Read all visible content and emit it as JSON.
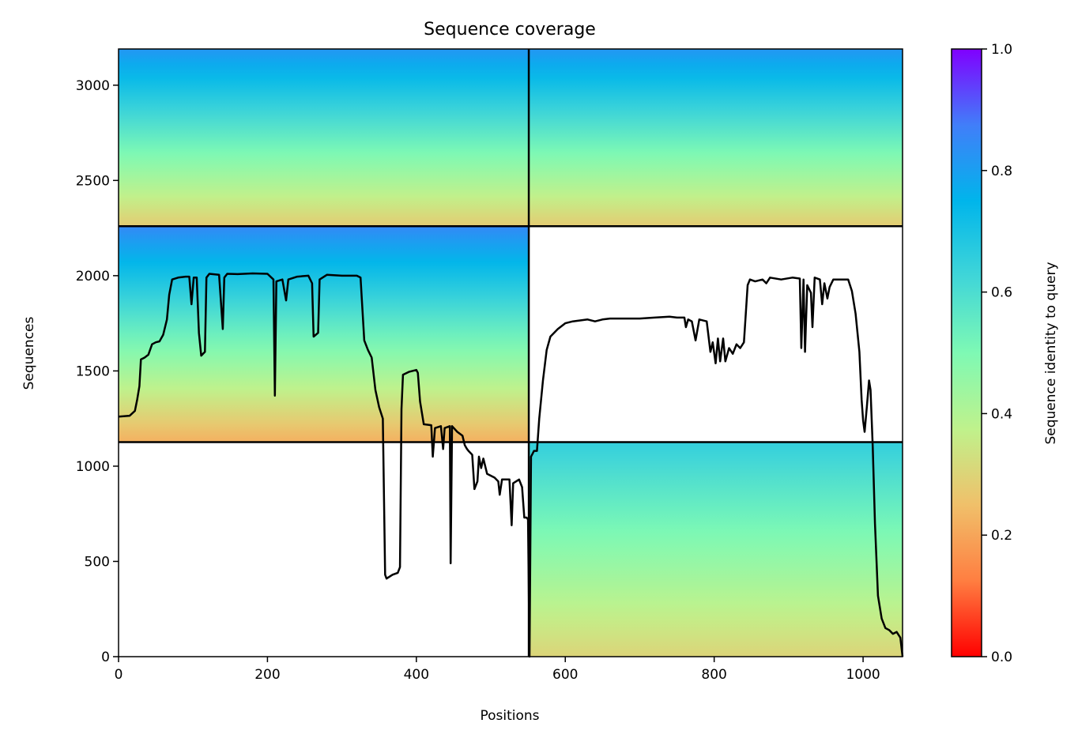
{
  "chart_data": {
    "type": "heatmap",
    "title": "Sequence coverage",
    "xlabel": "Positions",
    "ylabel": "Sequences",
    "xlim": [
      0,
      1053
    ],
    "ylim": [
      0,
      3190
    ],
    "x_ticks": [
      0,
      200,
      400,
      600,
      800,
      1000
    ],
    "y_ticks": [
      0,
      500,
      1000,
      1500,
      2000,
      2500,
      3000
    ],
    "colorbar": {
      "label": "Sequence identity to query",
      "range": [
        0.0,
        1.0
      ],
      "ticks": [
        "0.0",
        "0.2",
        "0.4",
        "0.6",
        "0.8",
        "1.0"
      ],
      "colormap": [
        "#ff0000",
        "#ff7e41",
        "#f0c06a",
        "#bff28c",
        "#7ef9b4",
        "#40d6d8",
        "#00b5eb",
        "#417ef9",
        "#8000ff"
      ]
    },
    "domain_boundaries": {
      "x": 551,
      "y": [
        1126,
        2260
      ]
    },
    "blocks": [
      {
        "x": [
          551,
          1053
        ],
        "y": [
          0,
          1126
        ],
        "identity_top": 0.65,
        "identity_bottom": 0.3
      },
      {
        "x": [
          0,
          551
        ],
        "y": [
          1126,
          2260
        ],
        "identity_top": 0.85,
        "identity_bottom": 0.22
      },
      {
        "x": [
          0,
          551
        ],
        "y": [
          2260,
          3190
        ],
        "identity_top": 0.82,
        "identity_bottom": 0.28
      },
      {
        "x": [
          551,
          1053
        ],
        "y": [
          2260,
          3190
        ],
        "identity_top": 0.82,
        "identity_bottom": 0.28
      }
    ],
    "series": [
      {
        "type": "line",
        "color": "#000000",
        "points": [
          [
            0,
            1260
          ],
          [
            15,
            1265
          ],
          [
            22,
            1290
          ],
          [
            25,
            1350
          ],
          [
            28,
            1420
          ],
          [
            30,
            1560
          ],
          [
            35,
            1570
          ],
          [
            40,
            1585
          ],
          [
            45,
            1640
          ],
          [
            50,
            1650
          ],
          [
            55,
            1655
          ],
          [
            60,
            1690
          ],
          [
            65,
            1770
          ],
          [
            68,
            1900
          ],
          [
            72,
            1980
          ],
          [
            80,
            1990
          ],
          [
            90,
            1995
          ],
          [
            95,
            1995
          ],
          [
            98,
            1850
          ],
          [
            101,
            1990
          ],
          [
            105,
            1990
          ],
          [
            108,
            1700
          ],
          [
            111,
            1580
          ],
          [
            116,
            1600
          ],
          [
            118,
            1990
          ],
          [
            122,
            2010
          ],
          [
            135,
            2005
          ],
          [
            140,
            1720
          ],
          [
            142,
            1990
          ],
          [
            146,
            2010
          ],
          [
            160,
            2008
          ],
          [
            180,
            2012
          ],
          [
            200,
            2010
          ],
          [
            208,
            1980
          ],
          [
            210,
            1370
          ],
          [
            212,
            1970
          ],
          [
            220,
            1980
          ],
          [
            225,
            1870
          ],
          [
            228,
            1980
          ],
          [
            240,
            1995
          ],
          [
            255,
            2000
          ],
          [
            260,
            1960
          ],
          [
            262,
            1680
          ],
          [
            268,
            1700
          ],
          [
            270,
            1980
          ],
          [
            280,
            2005
          ],
          [
            300,
            2000
          ],
          [
            320,
            2000
          ],
          [
            325,
            1990
          ],
          [
            330,
            1660
          ],
          [
            335,
            1610
          ],
          [
            340,
            1570
          ],
          [
            345,
            1400
          ],
          [
            350,
            1310
          ],
          [
            355,
            1250
          ],
          [
            358,
            430
          ],
          [
            360,
            410
          ],
          [
            368,
            430
          ],
          [
            375,
            440
          ],
          [
            378,
            470
          ],
          [
            380,
            1300
          ],
          [
            382,
            1480
          ],
          [
            390,
            1495
          ],
          [
            400,
            1505
          ],
          [
            402,
            1490
          ],
          [
            405,
            1340
          ],
          [
            410,
            1220
          ],
          [
            420,
            1215
          ],
          [
            422,
            1050
          ],
          [
            425,
            1200
          ],
          [
            433,
            1210
          ],
          [
            436,
            1090
          ],
          [
            438,
            1200
          ],
          [
            445,
            1210
          ],
          [
            446,
            490
          ],
          [
            448,
            1210
          ],
          [
            455,
            1180
          ],
          [
            462,
            1160
          ],
          [
            465,
            1110
          ],
          [
            468,
            1090
          ],
          [
            470,
            1080
          ],
          [
            475,
            1060
          ],
          [
            478,
            880
          ],
          [
            482,
            920
          ],
          [
            484,
            1050
          ],
          [
            487,
            990
          ],
          [
            490,
            1040
          ],
          [
            495,
            960
          ],
          [
            500,
            950
          ],
          [
            505,
            940
          ],
          [
            510,
            920
          ],
          [
            512,
            850
          ],
          [
            515,
            930
          ],
          [
            525,
            930
          ],
          [
            528,
            690
          ],
          [
            530,
            910
          ],
          [
            538,
            930
          ],
          [
            542,
            890
          ],
          [
            545,
            730
          ],
          [
            548,
            730
          ],
          [
            550,
            720
          ],
          [
            552,
            0
          ],
          [
            554,
            1050
          ],
          [
            558,
            1080
          ],
          [
            562,
            1080
          ],
          [
            565,
            1250
          ],
          [
            570,
            1450
          ],
          [
            575,
            1610
          ],
          [
            580,
            1680
          ],
          [
            590,
            1720
          ],
          [
            600,
            1750
          ],
          [
            610,
            1760
          ],
          [
            620,
            1765
          ],
          [
            630,
            1770
          ],
          [
            640,
            1760
          ],
          [
            650,
            1770
          ],
          [
            660,
            1775
          ],
          [
            680,
            1775
          ],
          [
            700,
            1775
          ],
          [
            720,
            1780
          ],
          [
            740,
            1785
          ],
          [
            750,
            1780
          ],
          [
            760,
            1780
          ],
          [
            762,
            1730
          ],
          [
            765,
            1770
          ],
          [
            770,
            1760
          ],
          [
            775,
            1660
          ],
          [
            780,
            1770
          ],
          [
            790,
            1760
          ],
          [
            795,
            1600
          ],
          [
            798,
            1650
          ],
          [
            802,
            1540
          ],
          [
            805,
            1670
          ],
          [
            808,
            1550
          ],
          [
            812,
            1670
          ],
          [
            815,
            1550
          ],
          [
            820,
            1620
          ],
          [
            825,
            1590
          ],
          [
            830,
            1640
          ],
          [
            835,
            1620
          ],
          [
            840,
            1650
          ],
          [
            845,
            1950
          ],
          [
            848,
            1980
          ],
          [
            855,
            1970
          ],
          [
            865,
            1980
          ],
          [
            870,
            1960
          ],
          [
            875,
            1990
          ],
          [
            890,
            1980
          ],
          [
            905,
            1990
          ],
          [
            915,
            1985
          ],
          [
            917,
            1620
          ],
          [
            920,
            1980
          ],
          [
            922,
            1600
          ],
          [
            925,
            1950
          ],
          [
            930,
            1910
          ],
          [
            932,
            1730
          ],
          [
            935,
            1990
          ],
          [
            942,
            1980
          ],
          [
            945,
            1850
          ],
          [
            948,
            1960
          ],
          [
            952,
            1880
          ],
          [
            955,
            1940
          ],
          [
            960,
            1980
          ],
          [
            970,
            1980
          ],
          [
            980,
            1980
          ],
          [
            985,
            1920
          ],
          [
            990,
            1800
          ],
          [
            995,
            1600
          ],
          [
            998,
            1350
          ],
          [
            1000,
            1240
          ],
          [
            1002,
            1180
          ],
          [
            1005,
            1310
          ],
          [
            1008,
            1450
          ],
          [
            1010,
            1400
          ],
          [
            1013,
            1100
          ],
          [
            1016,
            700
          ],
          [
            1020,
            320
          ],
          [
            1025,
            200
          ],
          [
            1030,
            150
          ],
          [
            1035,
            140
          ],
          [
            1040,
            120
          ],
          [
            1045,
            130
          ],
          [
            1050,
            100
          ],
          [
            1053,
            0
          ]
        ]
      }
    ]
  }
}
